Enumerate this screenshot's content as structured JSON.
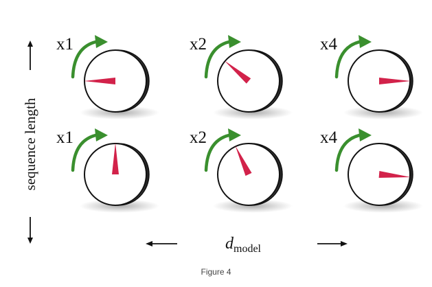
{
  "diagram": {
    "y_axis_label": "sequence length",
    "x_axis_label_main": "d",
    "x_axis_label_sub": "model",
    "caption": "Figure 4",
    "colors": {
      "needle": "#d2224a",
      "arrow": "#3a8f2e",
      "dial_edge": "#111111"
    },
    "rows": [
      {
        "dials": [
          {
            "multiplier": "x1",
            "needle_angle_deg": 180
          },
          {
            "multiplier": "x2",
            "needle_angle_deg": 140
          },
          {
            "multiplier": "x4",
            "needle_angle_deg": 0
          }
        ]
      },
      {
        "dials": [
          {
            "multiplier": "x1",
            "needle_angle_deg": 90
          },
          {
            "multiplier": "x2",
            "needle_angle_deg": 115
          },
          {
            "multiplier": "x4",
            "needle_angle_deg": -5
          }
        ]
      }
    ]
  }
}
